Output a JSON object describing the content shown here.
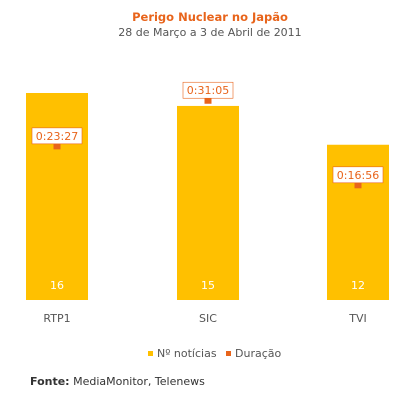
{
  "chart_data": {
    "type": "bar",
    "title": "Perigo Nuclear no Japão",
    "subtitle": "28 de Março a 3 de Abril de 2011",
    "categories": [
      "RTP1",
      "SIC",
      "TVI"
    ],
    "series": [
      {
        "name": "Nº notícias",
        "values": [
          16,
          15,
          12
        ],
        "color": "#ffc000"
      },
      {
        "name": "Duração",
        "values": [
          "0:23:27",
          "0:31:05",
          "0:16:56"
        ],
        "values_seconds": [
          1407,
          1865,
          1016
        ],
        "color": "#e8641b",
        "marker": "square"
      }
    ],
    "legend": "bottom-center",
    "grid": false
  },
  "footer": {
    "source_label": "Fonte:",
    "source_text": "MediaMonitor, Telenews"
  }
}
